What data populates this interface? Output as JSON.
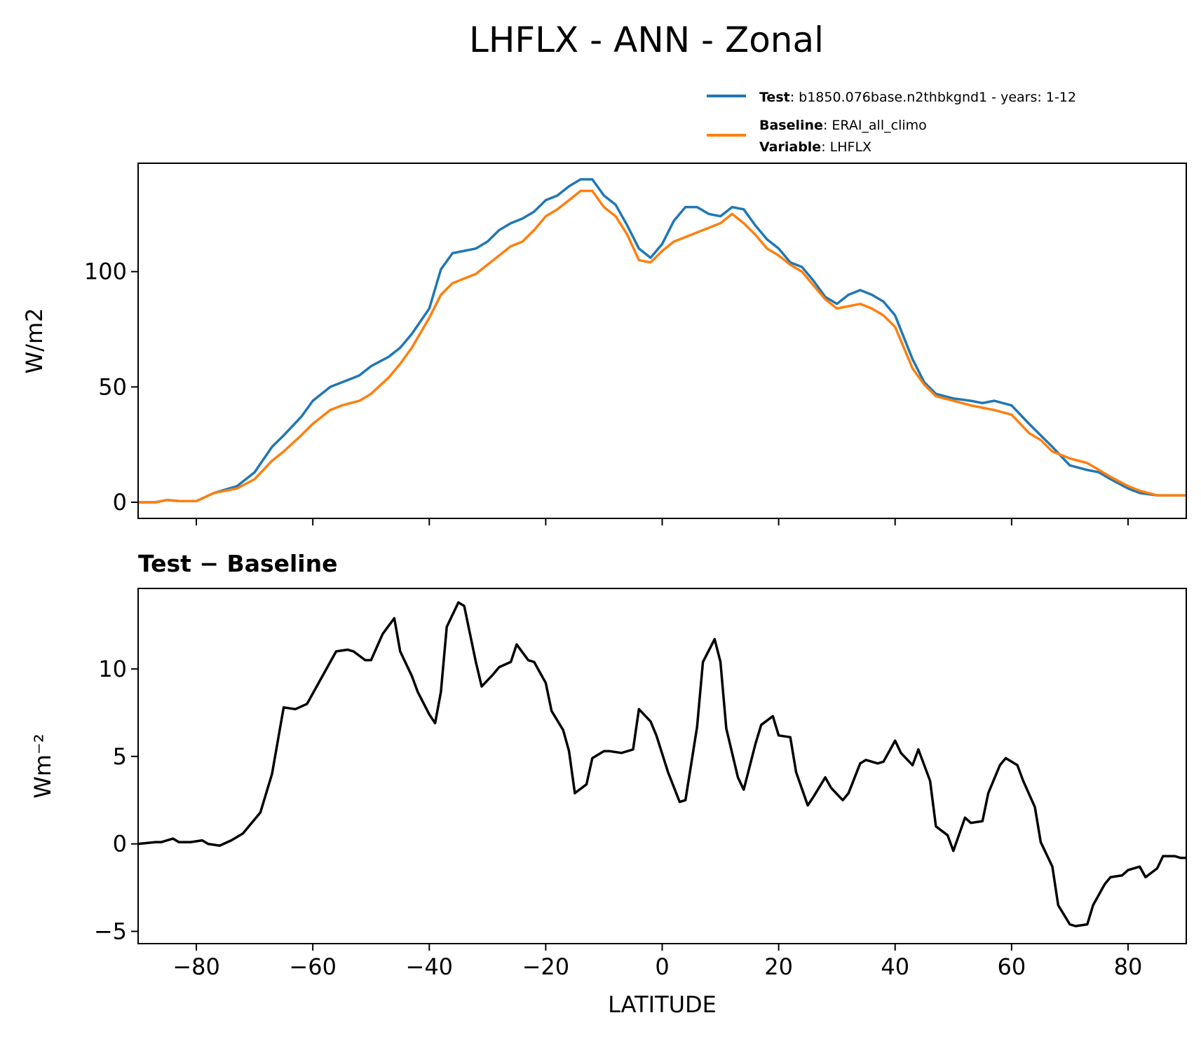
{
  "figure_title": "LHFLX - ANN - Zonal",
  "legend": {
    "test_key": "Test",
    "test_value": ": b1850.076base.n2thbkgnd1 - years: 1-12",
    "baseline_key": "Baseline",
    "baseline_value": ": ERAI_all_climo",
    "variable_key": "Variable",
    "variable_value": ": LHFLX"
  },
  "colors": {
    "test": "#1f77b4",
    "baseline": "#ff7f0e",
    "diff": "#000000"
  },
  "chart_data": [
    {
      "type": "line",
      "title": "",
      "xlabel": "",
      "ylabel": "W/m2",
      "xlim": [
        -90,
        90
      ],
      "ylim": [
        -7,
        147
      ],
      "yticks": [
        0,
        50,
        100
      ],
      "xticks": [
        -80,
        -60,
        -40,
        -20,
        0,
        20,
        40,
        60,
        80
      ],
      "x": [
        -90,
        -87,
        -85,
        -83,
        -80,
        -77,
        -73,
        -70,
        -67,
        -65,
        -62,
        -60,
        -57,
        -55,
        -52,
        -50,
        -47,
        -45,
        -43,
        -40,
        -38,
        -36,
        -34,
        -32,
        -30,
        -28,
        -26,
        -24,
        -22,
        -20,
        -18,
        -16,
        -14,
        -12,
        -10,
        -8,
        -6,
        -4,
        -2,
        0,
        2,
        4,
        6,
        8,
        10,
        12,
        14,
        16,
        18,
        20,
        22,
        24,
        26,
        28,
        30,
        32,
        34,
        36,
        38,
        40,
        43,
        45,
        47,
        50,
        53,
        55,
        57,
        60,
        63,
        65,
        67,
        70,
        73,
        75,
        77,
        80,
        82,
        85,
        87,
        90
      ],
      "series": [
        {
          "name": "Test",
          "values": [
            0,
            0,
            1,
            0.5,
            0.5,
            4,
            7,
            13,
            24,
            29,
            37,
            44,
            50,
            52,
            55,
            59,
            63,
            67,
            73,
            84,
            101,
            108,
            109,
            110,
            113,
            118,
            121,
            123,
            126,
            131,
            133,
            137,
            140,
            140,
            133,
            129,
            120,
            110,
            106,
            112,
            122,
            128,
            128,
            125,
            124,
            128,
            127,
            120,
            114,
            110,
            104,
            102,
            96,
            89,
            86,
            90,
            92,
            90,
            87,
            81,
            62,
            52,
            47,
            45,
            44,
            43,
            44,
            42,
            34,
            29,
            24,
            16,
            14,
            13,
            10,
            6,
            4,
            3,
            3,
            3
          ],
          "color": "#1f77b4"
        },
        {
          "name": "Baseline",
          "values": [
            0,
            0,
            1,
            0.5,
            0.5,
            4,
            6,
            10,
            18,
            22,
            29,
            34,
            40,
            42,
            44,
            47,
            54,
            60,
            67,
            80,
            90,
            95,
            97,
            99,
            103,
            107,
            111,
            113,
            118,
            124,
            127,
            131,
            135,
            135,
            128,
            124,
            116,
            105,
            104,
            109,
            113,
            115,
            117,
            119,
            121,
            125,
            121,
            116,
            110,
            107,
            103,
            100,
            94,
            88,
            84,
            85,
            86,
            84,
            81,
            76,
            58,
            51,
            46,
            44,
            42,
            41,
            40,
            38,
            30,
            27,
            22,
            19,
            17,
            14,
            11,
            7,
            5,
            3,
            3,
            3
          ],
          "color": "#ff7f0e"
        }
      ]
    },
    {
      "type": "line",
      "title": "Test − Baseline",
      "xlabel": "LATITUDE",
      "ylabel": "Wm⁻²",
      "xlim": [
        -90,
        90
      ],
      "ylim": [
        -5.7,
        14.6
      ],
      "yticks": [
        -5,
        0,
        5,
        10
      ],
      "xticks": [
        -80,
        -60,
        -40,
        -20,
        0,
        20,
        40,
        60,
        80
      ],
      "x": [
        -90,
        -87,
        -86,
        -84,
        -83,
        -81,
        -79,
        -78,
        -76,
        -74,
        -72,
        -71,
        -69,
        -67,
        -65,
        -63,
        -61,
        -59,
        -57,
        -56,
        -54,
        -53,
        -51,
        -50,
        -48,
        -46,
        -45,
        -43,
        -42,
        -40,
        -39,
        -38,
        -37,
        -35,
        -34,
        -32,
        -31,
        -29,
        -28,
        -26,
        -25,
        -23,
        -22,
        -20,
        -19,
        -17,
        -16,
        -15,
        -13,
        -12,
        -10,
        -9,
        -7,
        -5,
        -4,
        -2,
        -1,
        1,
        3,
        4,
        6,
        7,
        9,
        10,
        11,
        13,
        14,
        16,
        17,
        19,
        20,
        22,
        23,
        25,
        26,
        28,
        29,
        31,
        32,
        34,
        35,
        37,
        38,
        40,
        41,
        43,
        44,
        46,
        47,
        49,
        50,
        52,
        53,
        55,
        56,
        58,
        59,
        61,
        62,
        64,
        65,
        67,
        68,
        70,
        71,
        73,
        74,
        76,
        77,
        79,
        80,
        82,
        83,
        85,
        86,
        88,
        89,
        90
      ],
      "series": [
        {
          "name": "Test − Baseline",
          "values": [
            0,
            0.1,
            0.1,
            0.3,
            0.1,
            0.1,
            0.2,
            0,
            -0.1,
            0.2,
            0.6,
            1.0,
            1.8,
            4.0,
            7.8,
            7.7,
            8.0,
            9.2,
            10.4,
            11.0,
            11.1,
            11.0,
            10.5,
            10.5,
            12.0,
            12.9,
            11.0,
            9.6,
            8.7,
            7.4,
            6.9,
            8.7,
            12.4,
            13.8,
            13.6,
            10.4,
            9.0,
            9.7,
            10.1,
            10.4,
            11.4,
            10.5,
            10.4,
            9.2,
            7.6,
            6.5,
            5.3,
            2.9,
            3.4,
            4.9,
            5.3,
            5.3,
            5.2,
            5.4,
            7.7,
            7.0,
            6.2,
            4.1,
            2.4,
            2.5,
            6.7,
            10.4,
            11.7,
            10.4,
            6.6,
            3.8,
            3.1,
            5.7,
            6.8,
            7.3,
            6.2,
            6.1,
            4.1,
            2.2,
            2.7,
            3.8,
            3.2,
            2.5,
            2.9,
            4.6,
            4.8,
            4.6,
            4.7,
            5.9,
            5.2,
            4.5,
            5.4,
            3.6,
            1.0,
            0.5,
            -0.4,
            1.5,
            1.2,
            1.3,
            2.9,
            4.5,
            4.9,
            4.5,
            3.6,
            2.1,
            0.1,
            -1.3,
            -3.5,
            -4.6,
            -4.7,
            -4.6,
            -3.5,
            -2.3,
            -1.9,
            -1.8,
            -1.5,
            -1.3,
            -1.9,
            -1.4,
            -0.7,
            -0.7,
            -0.8,
            -0.8
          ]
        }
      ]
    }
  ]
}
